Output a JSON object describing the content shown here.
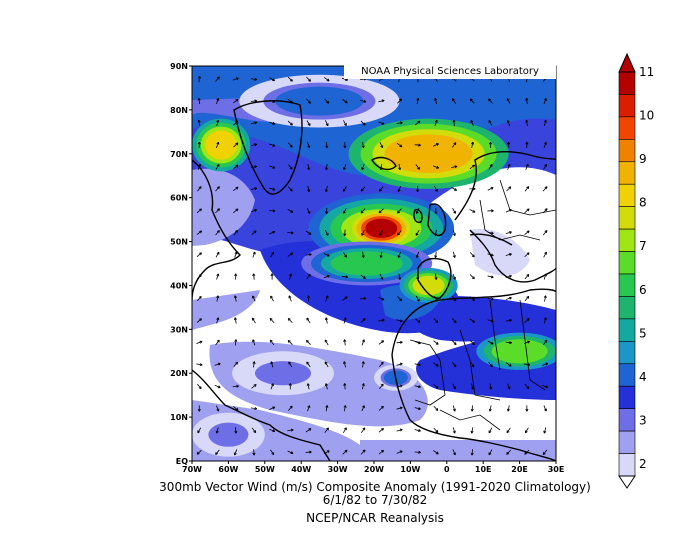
{
  "credit": "NOAA Physical Sciences Laboratory",
  "caption": {
    "line1": "300mb Vector Wind (m/s) Composite Anomaly (1991-2020 Climatology)",
    "line2": "6/1/82  to 7/30/82",
    "line3": "NCEP/NCAR Reanalysis"
  },
  "map": {
    "lat_ticks": [
      "EQ",
      "10N",
      "20N",
      "30N",
      "40N",
      "50N",
      "60N",
      "70N",
      "80N",
      "90N"
    ],
    "lon_ticks": [
      "70W",
      "60W",
      "50W",
      "40W",
      "30W",
      "20W",
      "10W",
      "0",
      "10E",
      "20E",
      "30E"
    ],
    "lon_range": [
      -70,
      30
    ],
    "lat_range": [
      0,
      90
    ]
  },
  "colorbar": {
    "labels": [
      "2",
      "3",
      "4",
      "5",
      "6",
      "7",
      "8",
      "9",
      "10",
      "11"
    ],
    "colors": [
      "#d8d8f8",
      "#a0a0f0",
      "#6e6ee6",
      "#2430d8",
      "#1e64d2",
      "#1a96c8",
      "#14a8a0",
      "#1eb46e",
      "#28c850",
      "#5adc28",
      "#a0e614",
      "#d2dc0a",
      "#f0d200",
      "#f0b400",
      "#f08200",
      "#f04600",
      "#dc1e00",
      "#b40000"
    ]
  },
  "anomaly_blobs": [
    {
      "lon": -35,
      "lat": 82,
      "rx": 22,
      "ry": 6,
      "level": 4
    },
    {
      "lon": -62,
      "lat": 72,
      "rx": 8,
      "ry": 6,
      "level": 12
    },
    {
      "lon": -5,
      "lat": 70,
      "rx": 22,
      "ry": 8,
      "level": 13
    },
    {
      "lon": -18,
      "lat": 53,
      "rx": 20,
      "ry": 8,
      "level": 10
    },
    {
      "lon": -18,
      "lat": 53,
      "rx": 8,
      "ry": 4,
      "level": 17
    },
    {
      "lon": -22,
      "lat": 45,
      "rx": 18,
      "ry": 5,
      "level": 8
    },
    {
      "lon": -5,
      "lat": 40,
      "rx": 8,
      "ry": 4,
      "level": 11
    },
    {
      "lon": 20,
      "lat": 25,
      "rx": 14,
      "ry": 5,
      "level": 9
    },
    {
      "lon": -14,
      "lat": 19,
      "rx": 6,
      "ry": 3,
      "level": 4
    },
    {
      "lon": -45,
      "lat": 20,
      "rx": 14,
      "ry": 5,
      "level": 2
    },
    {
      "lon": -60,
      "lat": 6,
      "rx": 10,
      "ry": 5,
      "level": 2
    }
  ]
}
